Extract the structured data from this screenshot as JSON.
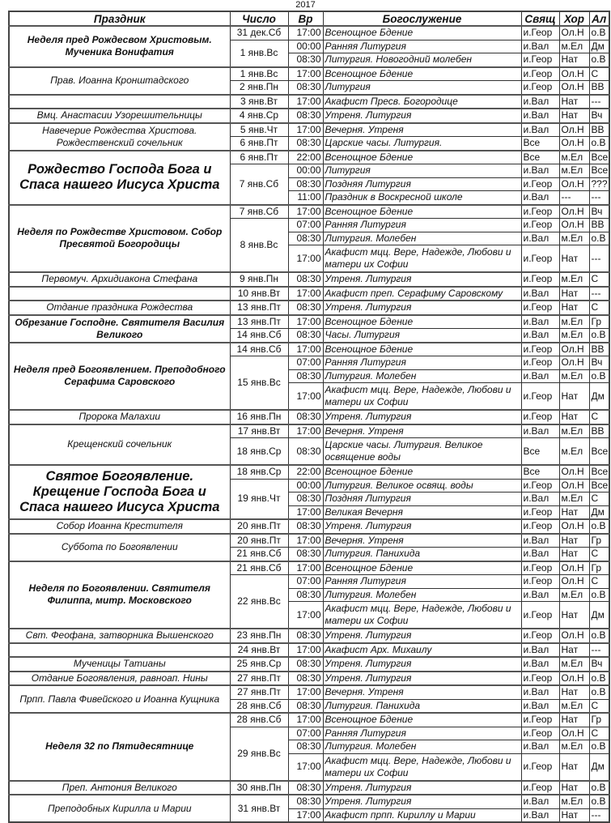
{
  "year": "2017",
  "headers": [
    "Праздник",
    "Число",
    "Вр",
    "Богослужение",
    "Свящ",
    "Хор",
    "Ал"
  ],
  "feasts": [
    {
      "title": "Неделя пред Рождесвом Христовым. Мученика Вонифатия",
      "style": "bold",
      "dates": [
        {
          "date": "31 дек.Сб",
          "services": [
            {
              "time": "17:00",
              "service": "Всенощное Бдение",
              "priest": "и.Геор",
              "choir": "Ол.Н",
              "al": "о.В"
            }
          ]
        },
        {
          "date": "1 янв.Вс",
          "services": [
            {
              "time": "00:00",
              "service": "Ранняя Литургия",
              "priest": "и.Вал",
              "choir": "м.Ел",
              "al": "Дм"
            },
            {
              "time": "08:30",
              "service": "Литургия. Новогодний молебен",
              "priest": "и.Геор",
              "choir": "Нат",
              "al": "о.В"
            }
          ]
        }
      ]
    },
    {
      "title": "Прав. Иоанна Кронштадского",
      "style": "normal",
      "dates": [
        {
          "date": "1 янв.Вс",
          "services": [
            {
              "time": "17:00",
              "service": "Всенощное Бдение",
              "priest": "и.Геор",
              "choir": "Ол.Н",
              "al": "С"
            }
          ]
        },
        {
          "date": "2 янв.Пн",
          "services": [
            {
              "time": "08:30",
              "service": "Литургия",
              "priest": "и.Геор",
              "choir": "Ол.Н",
              "al": "ВВ"
            }
          ]
        }
      ]
    },
    {
      "title": "",
      "style": "normal",
      "dates": [
        {
          "date": "3 янв.Вт",
          "services": [
            {
              "time": "17:00",
              "service": "Акафист Пресв. Богородице",
              "priest": "и.Вал",
              "choir": "Нат",
              "al": "---"
            }
          ]
        }
      ]
    },
    {
      "title": "Вмц. Анастасии Узорешительницы",
      "style": "normal",
      "dates": [
        {
          "date": "4 янв.Ср",
          "services": [
            {
              "time": "08:30",
              "service": "Утреня. Литургия",
              "priest": "и.Вал",
              "choir": "Нат",
              "al": "Вч"
            }
          ]
        }
      ]
    },
    {
      "title": "Навечерие Рождества Христова. Рождественский сочельник",
      "style": "normal",
      "dates": [
        {
          "date": "5 янв.Чт",
          "services": [
            {
              "time": "17:00",
              "service": "Вечерня. Утреня",
              "priest": "и.Вал",
              "choir": "Ол.Н",
              "al": "ВВ"
            }
          ]
        },
        {
          "date": "6 янв.Пт",
          "services": [
            {
              "time": "08:30",
              "service": "Царские часы. Литургия.",
              "priest": "Все",
              "choir": "Ол.Н",
              "al": "о.В"
            }
          ]
        }
      ]
    },
    {
      "title": "Рождество Господа Бога и Спаса нашего  Иисуса Христа",
      "style": "great",
      "dates": [
        {
          "date": "6 янв.Пт",
          "services": [
            {
              "time": "22:00",
              "service": "Всенощное Бдение",
              "priest": "Все",
              "choir": "м.Ел",
              "al": "Все"
            }
          ]
        },
        {
          "date": "7 янв.Сб",
          "services": [
            {
              "time": "00:00",
              "service": "Литургия",
              "priest": "и.Вал",
              "choir": "м.Ел",
              "al": "Все"
            },
            {
              "time": "08:30",
              "service": "Поздняя Литургия",
              "priest": "и.Геор",
              "choir": "Ол.Н",
              "al": "???"
            },
            {
              "time": "11:00",
              "service": "Праздник в Воскресной школе",
              "priest": "и.Вал",
              "choir": "---",
              "al": "---"
            }
          ]
        }
      ]
    },
    {
      "title": "Неделя по Рождестве Христовом. Собор Пресвятой Богородицы",
      "style": "bold",
      "dates": [
        {
          "date": "7 янв.Сб",
          "services": [
            {
              "time": "17:00",
              "service": "Всенощное Бдение",
              "priest": "и.Геор",
              "choir": "Ол.Н",
              "al": "Вч"
            }
          ]
        },
        {
          "date": "8 янв.Вс",
          "services": [
            {
              "time": "07:00",
              "service": "Ранняя Литургия",
              "priest": "и.Геор",
              "choir": "Ол.Н",
              "al": "ВВ"
            },
            {
              "time": "08:30",
              "service": "Литургия. Молебен",
              "priest": "и.Вал",
              "choir": "м.Ел",
              "al": "о.В"
            },
            {
              "time": "17:00",
              "service": "Акафист мцц. Вере, Надежде, Любови и матери их Софии",
              "priest": "и.Геор",
              "choir": "Нат",
              "al": "---",
              "double": true
            }
          ]
        }
      ]
    },
    {
      "title": "Первомуч. Архидиакона Стефана",
      "style": "normal",
      "dates": [
        {
          "date": "9 янв.Пн",
          "services": [
            {
              "time": "08:30",
              "service": "Утреня. Литургия",
              "priest": "и.Геор",
              "choir": "м.Ел",
              "al": "С"
            }
          ]
        }
      ]
    },
    {
      "title": "",
      "style": "normal",
      "dates": [
        {
          "date": "10 янв.Вт",
          "services": [
            {
              "time": "17:00",
              "service": "Акафист преп. Серафиму Саровскому",
              "priest": "и.Вал",
              "choir": "Нат",
              "al": "---"
            }
          ]
        }
      ]
    },
    {
      "title": "Отдание праздника Рождества",
      "style": "normal",
      "dates": [
        {
          "date": "13 янв.Пт",
          "services": [
            {
              "time": "08:30",
              "service": "Утреня. Литургия",
              "priest": "и.Геор",
              "choir": "Нат",
              "al": "С"
            }
          ]
        }
      ]
    },
    {
      "title": "Обрезание Господне. Святителя Василия Великого",
      "style": "bold",
      "dates": [
        {
          "date": "13 янв.Пт",
          "services": [
            {
              "time": "17:00",
              "service": "Всенощное Бдение",
              "priest": "и.Вал",
              "choir": "м.Ел",
              "al": "Гр"
            }
          ]
        },
        {
          "date": "14 янв.Сб",
          "services": [
            {
              "time": "08:30",
              "service": "Часы. Литургия",
              "priest": "и.Вал",
              "choir": "м.Ел",
              "al": "о.В"
            }
          ]
        }
      ]
    },
    {
      "title": "Неделя пред Богоявлением. Преподобного Серафима Саровского",
      "style": "bold",
      "dates": [
        {
          "date": "14 янв.Сб",
          "services": [
            {
              "time": "17:00",
              "service": "Всенощное Бдение",
              "priest": "и.Геор",
              "choir": "Ол.Н",
              "al": "ВВ"
            }
          ]
        },
        {
          "date": "15 янв.Вс",
          "services": [
            {
              "time": "07:00",
              "service": "Ранняя Литургия",
              "priest": "и.Геор",
              "choir": "Ол.Н",
              "al": "Вч"
            },
            {
              "time": "08:30",
              "service": "Литургия. Молебен",
              "priest": "и.Вал",
              "choir": "м.Ел",
              "al": "о.В"
            },
            {
              "time": "17:00",
              "service": "Акафист мцц. Вере, Надежде, Любови и матери их Софии",
              "priest": "и.Геор",
              "choir": "Нат",
              "al": "Дм",
              "double": true
            }
          ]
        }
      ]
    },
    {
      "title": "Пророка Малахии",
      "style": "normal",
      "dates": [
        {
          "date": "16 янв.Пн",
          "services": [
            {
              "time": "08:30",
              "service": "Утреня. Литургия",
              "priest": "и.Геор",
              "choir": "Нат",
              "al": "С"
            }
          ]
        }
      ]
    },
    {
      "title": "Крещенский сочельник",
      "style": "normal",
      "dates": [
        {
          "date": "17 янв.Вт",
          "services": [
            {
              "time": "17:00",
              "service": "Вечерня. Утреня",
              "priest": "и.Вал",
              "choir": "м.Ел",
              "al": "ВВ"
            }
          ]
        },
        {
          "date": "18 янв.Ср",
          "services": [
            {
              "time": "08:30",
              "service": "Царские часы. Литургия. Великое освящение воды",
              "priest": "Все",
              "choir": "м.Ел",
              "al": "Все",
              "double": true
            }
          ]
        }
      ]
    },
    {
      "title": "Святое Богоявление. Крещение Господа Бога и Спаса нашего Иисуса Христа",
      "style": "great",
      "dates": [
        {
          "date": "18 янв.Ср",
          "services": [
            {
              "time": "22:00",
              "service": "Всенощное Бдение",
              "priest": "Все",
              "choir": "Ол.Н",
              "al": "Все"
            }
          ]
        },
        {
          "date": "19 янв.Чт",
          "services": [
            {
              "time": "00:00",
              "service": "Литургия. Великое освящ. воды",
              "priest": "и.Геор",
              "choir": "Ол.Н",
              "al": "Все"
            },
            {
              "time": "08:30",
              "service": "Поздняя Литургия",
              "priest": "и.Вал",
              "choir": "м.Ел",
              "al": "С"
            },
            {
              "time": "17:00",
              "service": "Великая Вечерня",
              "priest": "и.Геор",
              "choir": "Нат",
              "al": "Дм"
            }
          ]
        }
      ]
    },
    {
      "title": "Собор Иоанна Крестителя",
      "style": "normal",
      "dates": [
        {
          "date": "20 янв.Пт",
          "services": [
            {
              "time": "08:30",
              "service": "Утреня. Литургия",
              "priest": "и.Геор",
              "choir": "Ол.Н",
              "al": "о.В"
            }
          ]
        }
      ]
    },
    {
      "title": "Суббота по Богоявлении",
      "style": "normal",
      "dates": [
        {
          "date": "20 янв.Пт",
          "services": [
            {
              "time": "17:00",
              "service": "Вечерня. Утреня",
              "priest": "и.Вал",
              "choir": "Нат",
              "al": "Гр"
            }
          ]
        },
        {
          "date": "21 янв.Сб",
          "services": [
            {
              "time": "08:30",
              "service": "Литургия. Панихида",
              "priest": "и.Вал",
              "choir": "Нат",
              "al": "С"
            }
          ]
        }
      ]
    },
    {
      "title": "Неделя по Богоявлении. Святителя Филиппа, митр. Московского",
      "style": "bold",
      "dates": [
        {
          "date": "21 янв.Сб",
          "services": [
            {
              "time": "17:00",
              "service": "Всенощное Бдение",
              "priest": "и.Геор",
              "choir": "Ол.Н",
              "al": "Гр"
            }
          ]
        },
        {
          "date": "22 янв.Вс",
          "services": [
            {
              "time": "07:00",
              "service": "Ранняя Литургия",
              "priest": "и.Геор",
              "choir": "Ол.Н",
              "al": "С"
            },
            {
              "time": "08:30",
              "service": "Литургия. Молебен",
              "priest": "и.Вал",
              "choir": "м.Ел",
              "al": "о.В"
            },
            {
              "time": "17:00",
              "service": "Акафист мцц. Вере, Надежде, Любови и матери их Софии",
              "priest": "и.Геор",
              "choir": "Нат",
              "al": "Дм",
              "double": true
            }
          ]
        }
      ]
    },
    {
      "title": "Свт. Феофана, затворника Вышенского",
      "style": "normal",
      "dates": [
        {
          "date": "23 янв.Пн",
          "services": [
            {
              "time": "08:30",
              "service": "Утреня. Литургия",
              "priest": "и.Геор",
              "choir": "Ол.Н",
              "al": "о.В"
            }
          ]
        }
      ]
    },
    {
      "title": "",
      "style": "normal",
      "dates": [
        {
          "date": "24 янв.Вт",
          "services": [
            {
              "time": "17:00",
              "service": "Акафист Арх. Михаилу",
              "priest": "и.Вал",
              "choir": "Нат",
              "al": "---"
            }
          ]
        }
      ]
    },
    {
      "title": "Мученицы Татианы",
      "style": "normal",
      "dates": [
        {
          "date": "25 янв.Ср",
          "services": [
            {
              "time": "08:30",
              "service": "Утреня. Литургия",
              "priest": "и.Вал",
              "choir": "м.Ел",
              "al": "Вч"
            }
          ]
        }
      ]
    },
    {
      "title": "Отдание Богоявления, равноап. Нины",
      "style": "normal",
      "dates": [
        {
          "date": "27 янв.Пт",
          "services": [
            {
              "time": "08:30",
              "service": "Утреня. Литургия",
              "priest": "и.Геор",
              "choir": "Ол.Н",
              "al": "о.В"
            }
          ]
        }
      ]
    },
    {
      "title": "Прпп. Павла Фивейского и Иоанна Кущника",
      "style": "normal",
      "dates": [
        {
          "date": "27 янв.Пт",
          "services": [
            {
              "time": "17:00",
              "service": "Вечерня. Утреня",
              "priest": "и.Вал",
              "choir": "Нат",
              "al": "о.В"
            }
          ]
        },
        {
          "date": "28 янв.Сб",
          "services": [
            {
              "time": "08:30",
              "service": "Литургия. Панихида",
              "priest": "и.Вал",
              "choir": "м.Ел",
              "al": "С"
            }
          ]
        }
      ]
    },
    {
      "title": "Неделя 32 по Пятидесятнице",
      "style": "bold",
      "dates": [
        {
          "date": "28 янв.Сб",
          "services": [
            {
              "time": "17:00",
              "service": "Всенощное Бдение",
              "priest": "и.Геор",
              "choir": "Нат",
              "al": "Гр"
            }
          ]
        },
        {
          "date": "29 янв.Вс",
          "services": [
            {
              "time": "07:00",
              "service": "Ранняя Литургия",
              "priest": "и.Геор",
              "choir": "Ол.Н",
              "al": "С"
            },
            {
              "time": "08:30",
              "service": "Литургия. Молебен",
              "priest": "и.Вал",
              "choir": "м.Ел",
              "al": "о.В"
            },
            {
              "time": "17:00",
              "service": "Акафист мцц. Вере, Надежде, Любови и матери их Софии",
              "priest": "и.Геор",
              "choir": "Нат",
              "al": "Дм",
              "double": true
            }
          ]
        }
      ]
    },
    {
      "title": "Преп. Антония Великого",
      "style": "normal",
      "dates": [
        {
          "date": "30 янв.Пн",
          "services": [
            {
              "time": "08:30",
              "service": "Утреня. Литургия",
              "priest": "и.Геор",
              "choir": "Нат",
              "al": "о.В"
            }
          ]
        }
      ]
    },
    {
      "title": "Преподобных Кирилла и Марии",
      "style": "normal",
      "dates": [
        {
          "date": "31 янв.Вт",
          "services": [
            {
              "time": "08:30",
              "service": "Утреня. Литургия",
              "priest": "и.Вал",
              "choir": "м.Ел",
              "al": "о.В"
            },
            {
              "time": "17:00",
              "service": "Акафист прпп. Кириллу и Марии",
              "priest": "и.Вал",
              "choir": "Нат",
              "al": "---"
            }
          ]
        }
      ]
    }
  ]
}
